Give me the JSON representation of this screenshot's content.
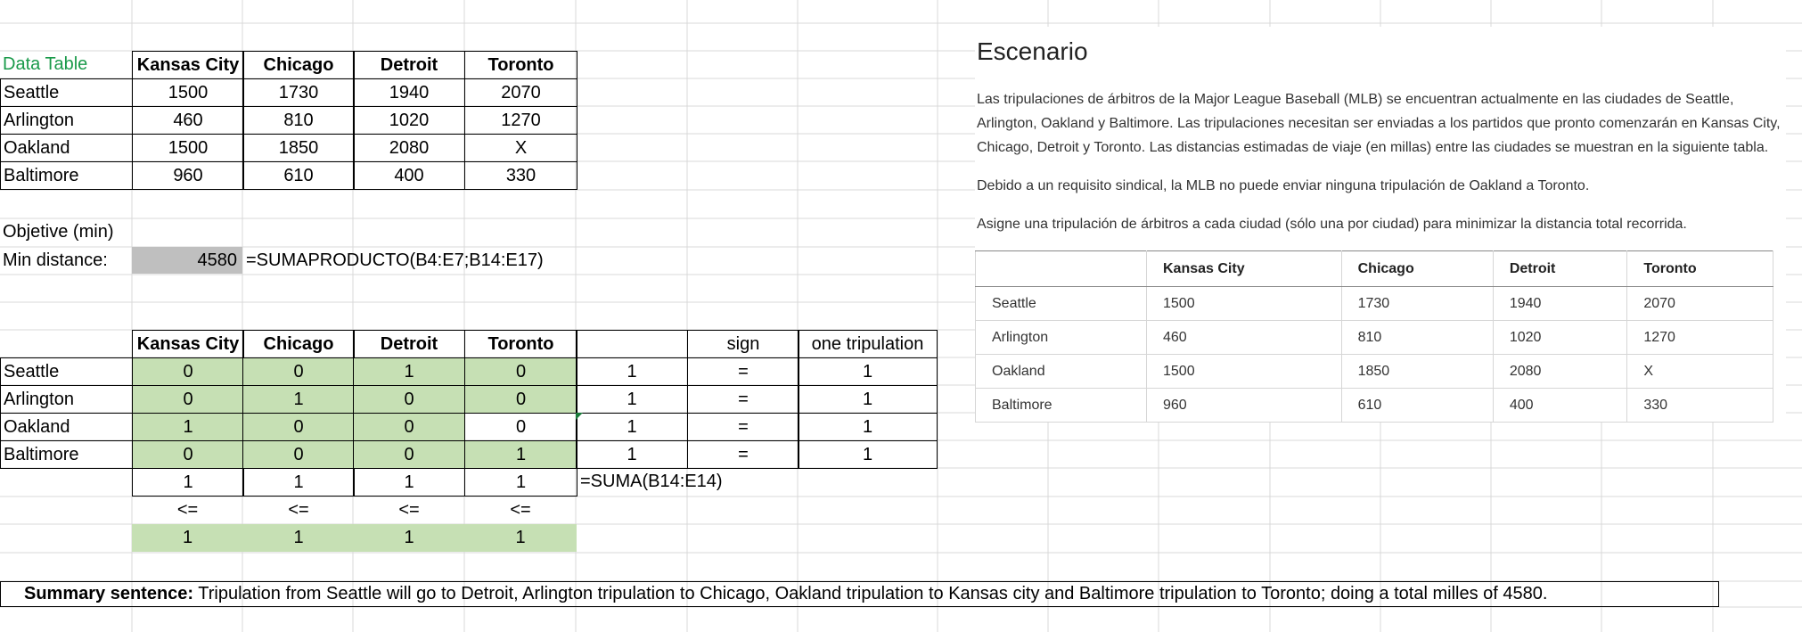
{
  "data_table": {
    "title": "Data Table",
    "columns": [
      "Kansas City",
      "Chicago",
      "Detroit",
      "Toronto"
    ],
    "rows": [
      {
        "city": "Seattle",
        "values": [
          "1500",
          "1730",
          "1940",
          "2070"
        ]
      },
      {
        "city": "Arlington",
        "values": [
          "460",
          "810",
          "1020",
          "1270"
        ]
      },
      {
        "city": "Oakland",
        "values": [
          "1500",
          "1850",
          "2080",
          "X"
        ]
      },
      {
        "city": "Baltimore",
        "values": [
          "960",
          "610",
          "400",
          "330"
        ]
      }
    ]
  },
  "objective": {
    "label": "Objetive (min)",
    "min_label": "Min distance:",
    "min_value": "4580",
    "formula": "=SUMAPRODUCTO(B4:E7;B14:E17)"
  },
  "decision_table": {
    "columns": [
      "Kansas City",
      "Chicago",
      "Detroit",
      "Toronto",
      "",
      "sign",
      "one tripulation"
    ],
    "rows": [
      {
        "city": "Seattle",
        "values": [
          "0",
          "0",
          "1",
          "0"
        ],
        "sum": "1",
        "sign": "=",
        "rhs": "1"
      },
      {
        "city": "Arlington",
        "values": [
          "0",
          "1",
          "0",
          "0"
        ],
        "sum": "1",
        "sign": "=",
        "rhs": "1"
      },
      {
        "city": "Oakland",
        "values": [
          "1",
          "0",
          "0",
          "0"
        ],
        "sum": "1",
        "sign": "=",
        "rhs": "1"
      },
      {
        "city": "Baltimore",
        "values": [
          "0",
          "0",
          "0",
          "1"
        ],
        "sum": "1",
        "sign": "=",
        "rhs": "1"
      }
    ],
    "col_sums": [
      "1",
      "1",
      "1",
      "1"
    ],
    "col_sum_formula": "=SUMA(B14:E14)",
    "col_signs": [
      "<=",
      "<=",
      "<=",
      "<="
    ],
    "col_rhs": [
      "1",
      "1",
      "1",
      "1"
    ]
  },
  "scenario": {
    "title": "Escenario",
    "paragraphs": [
      "Las tripulaciones de árbitros de la Major League Baseball (MLB) se encuentran actualmente en las ciudades de Seattle, Arlington, Oakland y Baltimore. Las tripulaciones necesitan ser enviadas a los partidos que pronto comenzarán en Kansas City, Chicago, Detroit y Toronto. Las distancias estimadas de viaje (en millas) entre las ciudades se muestran en la siguiente tabla.",
      "Debido a un requisito sindical, la MLB no puede enviar ninguna tripulación de Oakland a Toronto.",
      "Asigne una tripulación de árbitros a cada ciudad (sólo una por ciudad) para minimizar la distancia total recorrida."
    ],
    "table": {
      "columns": [
        "",
        "Kansas City",
        "Chicago",
        "Detroit",
        "Toronto"
      ],
      "rows": [
        [
          "Seattle",
          "1500",
          "1730",
          "1940",
          "2070"
        ],
        [
          "Arlington",
          "460",
          "810",
          "1020",
          "1270"
        ],
        [
          "Oakland",
          "1500",
          "1850",
          "2080",
          "X"
        ],
        [
          "Baltimore",
          "960",
          "610",
          "400",
          "330"
        ]
      ]
    }
  },
  "summary": {
    "label": "Summary sentence:",
    "text": " Tripulation from Seattle will go to Detroit, Arlington tripulation to Chicago, Oakland tripulation to Kansas city and Baltimore tripulation to Toronto; doing a total milles of 4580."
  },
  "colors": {
    "gridline": "#d9d9d9",
    "input_green": "#c6e0b4",
    "result_gray": "#bfbfbf",
    "title_green": "#1a9a4a"
  }
}
